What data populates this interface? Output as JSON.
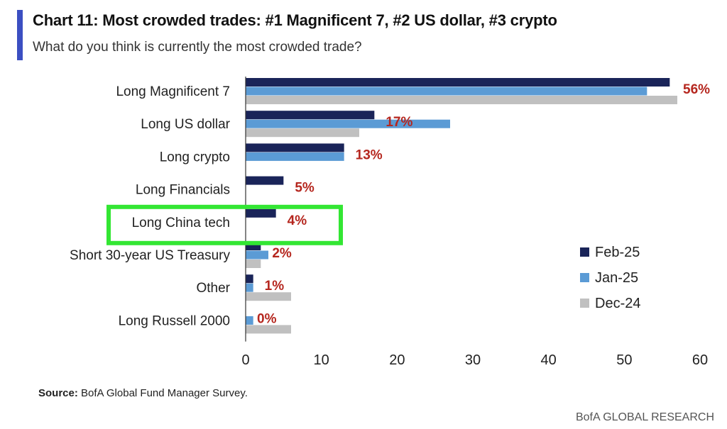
{
  "header": {
    "title": "Chart 11: Most crowded trades: #1 Magnificent 7, #2 US dollar, #3 crypto",
    "subtitle": "What do you think is currently the most crowded trade?"
  },
  "footer": {
    "source_label": "Source:",
    "source_text": " BofA Global Fund Manager Survey.",
    "brand": "BofA GLOBAL RESEARCH"
  },
  "colors": {
    "feb25": "#1a2459",
    "jan25": "#5b9bd5",
    "dec24": "#c0c0c0",
    "label": "#b5261e",
    "highlight": "#33e633",
    "accent": "#3b4fc2"
  },
  "chart_data": {
    "type": "bar",
    "orientation": "horizontal",
    "categories": [
      "Long Magnificent 7",
      "Long US dollar",
      "Long crypto",
      "Long Financials",
      "Long China tech",
      "Short 30-year US Treasury",
      "Other",
      "Long Russell 2000"
    ],
    "series": [
      {
        "name": "Feb-25",
        "values": [
          56,
          17,
          13,
          5,
          4,
          2,
          1,
          0
        ]
      },
      {
        "name": "Jan-25",
        "values": [
          53,
          27,
          13,
          0,
          0,
          3,
          1,
          1
        ]
      },
      {
        "name": "Dec-24",
        "values": [
          57,
          15,
          0,
          0,
          0,
          2,
          6,
          6
        ]
      }
    ],
    "data_labels": [
      "56%",
      "17%",
      "13%",
      "5%",
      "4%",
      "2%",
      "1%",
      "0%"
    ],
    "xlim": [
      0,
      60
    ],
    "xticks": [
      0,
      10,
      20,
      30,
      40,
      50,
      60
    ],
    "legend_placement": "right",
    "highlighted_category": "Long China tech",
    "grid": false
  }
}
